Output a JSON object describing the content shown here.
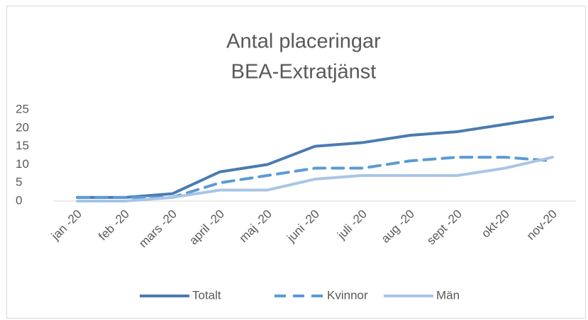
{
  "chart_data": {
    "type": "line",
    "title": "Antal placeringar",
    "subtitle": "BEA-Extratjänst",
    "categories": [
      "jan -20",
      "feb -20",
      "mars -20",
      "april -20",
      "maj -20",
      "juni -20",
      "juli -20",
      "aug -20",
      "sept -20",
      "okt-20",
      "nov-20"
    ],
    "series": [
      {
        "name": "Totalt",
        "color": "#4a7bb1",
        "dashed": false,
        "values": [
          1,
          1,
          2,
          8,
          10,
          15,
          16,
          18,
          19,
          21,
          23
        ]
      },
      {
        "name": "Kvinnor",
        "color": "#5b9bd5",
        "dashed": true,
        "values": [
          1,
          1,
          1,
          5,
          7,
          9,
          9,
          11,
          12,
          12,
          11
        ]
      },
      {
        "name": "Män",
        "color": "#a9c5e6",
        "dashed": false,
        "values": [
          0,
          0,
          1,
          3,
          3,
          6,
          7,
          7,
          7,
          9,
          12
        ]
      }
    ],
    "ylim": [
      0,
      25
    ],
    "yticks": [
      0,
      5,
      10,
      15,
      20,
      25
    ],
    "grid": false,
    "legend": "bottom"
  }
}
